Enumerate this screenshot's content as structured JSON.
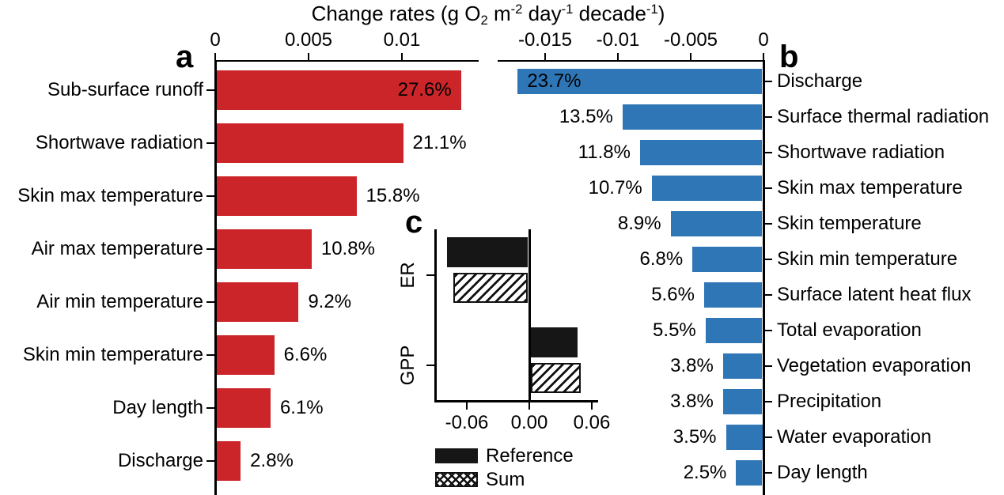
{
  "title_segments": [
    {
      "text": "Change rates (g O"
    },
    {
      "sub": "2"
    },
    {
      "text": " m"
    },
    {
      "sup": "-2"
    },
    {
      "text": " day"
    },
    {
      "sup": "-1"
    },
    {
      "text": " decade"
    },
    {
      "sup": "-1"
    },
    {
      "text": ")"
    }
  ],
  "colors": {
    "red_bar": "#cb2529",
    "blue_bar": "#2e76b6",
    "black_bar": "#161616",
    "axis": "#000000",
    "text": "#000000",
    "background": "#ffffff"
  },
  "chart_data": [
    {
      "id": "a",
      "type": "bar",
      "orientation": "horizontal",
      "panel_label": "a",
      "bar_color": "#cb2529",
      "axis": {
        "side": "top",
        "label": "Change rates (g O2 m-2 day-1 decade-1)",
        "ticks": [
          0,
          0.005,
          0.01
        ],
        "tick_labels": [
          "0",
          "0.005",
          "0.01"
        ],
        "range": [
          0,
          0.0141
        ],
        "grid": false
      },
      "label_inside_first": true,
      "categories": [
        "Sub-surface runoff",
        "Shortwave radiation",
        "Skin max temperature",
        "Air max temperature",
        "Air min temperature",
        "Skin min temperature",
        "Day length",
        "Discharge"
      ],
      "values": [
        0.0131,
        0.01,
        0.0075,
        0.0051,
        0.0044,
        0.0031,
        0.0029,
        0.0013
      ],
      "percent_labels": [
        "27.6%",
        "21.1%",
        "15.8%",
        "10.8%",
        "9.2%",
        "6.6%",
        "6.1%",
        "2.8%"
      ]
    },
    {
      "id": "b",
      "type": "bar",
      "orientation": "horizontal",
      "panel_label": "b",
      "bar_color": "#2e76b6",
      "axis": {
        "side": "top",
        "label": "Change rates (g O2 m-2 day-1 decade-1)",
        "ticks": [
          -0.015,
          -0.01,
          -0.005,
          0
        ],
        "tick_labels": [
          "-0.015",
          "-0.01",
          "-0.005",
          "0"
        ],
        "range": [
          -0.0182,
          0
        ],
        "grid": false
      },
      "label_inside_first": true,
      "categories": [
        "Discharge",
        "Surface thermal radiation",
        "Shortwave radiation",
        "Skin max temperature",
        "Skin temperature",
        "Skin min temperature",
        "Surface latent heat flux",
        "Total evaporation",
        "Vegetation evaporation",
        "Precipitation",
        "Water evaporation",
        "Day length"
      ],
      "values": [
        -0.0168,
        -0.0096,
        -0.0084,
        -0.0076,
        -0.0063,
        -0.0048,
        -0.004,
        -0.0039,
        -0.0027,
        -0.0027,
        -0.0025,
        -0.0018
      ],
      "percent_labels": [
        "23.7%",
        "13.5%",
        "11.8%",
        "10.7%",
        "8.9%",
        "6.8%",
        "5.6%",
        "5.5%",
        "3.8%",
        "3.8%",
        "3.5%",
        "2.5%"
      ]
    },
    {
      "id": "c",
      "type": "bar",
      "orientation": "horizontal",
      "grouped": true,
      "panel_label": "c",
      "categories": [
        "ER",
        "GPP"
      ],
      "series": [
        {
          "name": "Reference",
          "style": "solid",
          "values": [
            -0.078,
            0.045
          ]
        },
        {
          "name": "Sum",
          "style": "hatch",
          "values": [
            -0.072,
            0.048
          ]
        }
      ],
      "axis": {
        "side": "bottom",
        "ticks": [
          -0.06,
          0,
          0.06
        ],
        "tick_labels": [
          "-0.06",
          "0.00",
          "0.06"
        ],
        "range": [
          -0.09,
          0.066
        ],
        "grid": false
      },
      "legend": [
        {
          "label": "Reference",
          "swatch": "solid"
        },
        {
          "label": "Sum",
          "swatch": "crosshatch"
        }
      ],
      "legend_position": "below"
    }
  ]
}
